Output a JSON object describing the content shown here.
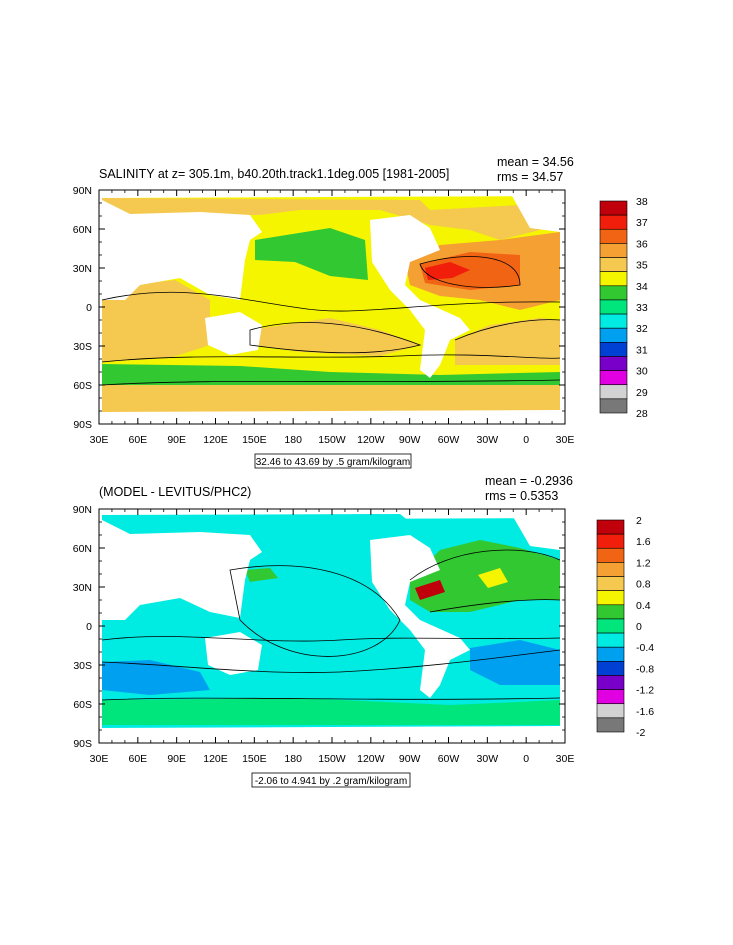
{
  "panels": [
    {
      "title": "SALINITY at z= 305.1m, b40.20th.track1.1deg.005 [1981-2005]",
      "mean_label": "mean = 34.56",
      "rms_label": "rms = 34.57",
      "range_label": "32.46 to 43.69 by .5 gram/kilogram",
      "colorbar_labels": [
        "38",
        "37",
        "36",
        "35",
        "34",
        "33",
        "32",
        "31",
        "30",
        "29",
        "28"
      ],
      "colorbar_colors": [
        "#c0000a",
        "#f01e0a",
        "#f06414",
        "#f5a032",
        "#f5c850",
        "#f5f500",
        "#32c832",
        "#00e67d",
        "#00ebe1",
        "#00a0f0",
        "#0040d2",
        "#7800c8",
        "#e100e1",
        "#d2d2d2",
        "#787878"
      ],
      "x_ticks": [
        "30E",
        "60E",
        "90E",
        "120E",
        "150E",
        "180",
        "150W",
        "120W",
        "90W",
        "60W",
        "30W",
        "0",
        "30E"
      ],
      "y_ticks": [
        "90N",
        "60N",
        "30N",
        "0",
        "30S",
        "60S",
        "90S"
      ]
    },
    {
      "title": "(MODEL - LEVITUS/PHC2)",
      "mean_label": "mean = -0.2936",
      "rms_label": "rms = 0.5353",
      "range_label": "-2.06 to 4.941 by .2 gram/kilogram",
      "colorbar_labels": [
        "2",
        "1.6",
        "1.2",
        "0.8",
        "0.4",
        "0",
        "-0.4",
        "-0.8",
        "-1.2",
        "-1.6",
        "-2"
      ],
      "colorbar_colors": [
        "#c0000a",
        "#f01e0a",
        "#f06414",
        "#f5a032",
        "#f5c850",
        "#f5f500",
        "#32c832",
        "#00e67d",
        "#00ebe1",
        "#00a0f0",
        "#0040d2",
        "#7800c8",
        "#e100e1",
        "#d2d2d2",
        "#787878"
      ],
      "x_ticks": [
        "30E",
        "60E",
        "90E",
        "120E",
        "150E",
        "180",
        "150W",
        "120W",
        "90W",
        "60W",
        "30W",
        "0",
        "30E"
      ],
      "y_ticks": [
        "90N",
        "60N",
        "30N",
        "0",
        "30S",
        "60S",
        "90S"
      ]
    }
  ],
  "chart_data": [
    {
      "type": "heatmap",
      "title": "SALINITY at z= 305.1m, b40.20th.track1.1deg.005 [1981-2005]",
      "mean": 34.56,
      "rms": 34.57,
      "contour_info": "32.46 to 43.69 by .5 gram/kilogram",
      "x_range": [
        "30E",
        "30E"
      ],
      "y_range": [
        "90S",
        "90N"
      ],
      "colorbar_min": 28,
      "colorbar_max": 38,
      "colorbar_levels": [
        "38",
        "37",
        "36",
        "35",
        "34",
        "33",
        "32",
        "31",
        "30",
        "29",
        "28"
      ]
    },
    {
      "type": "heatmap",
      "title": "(MODEL - LEVITUS/PHC2)",
      "mean": -0.2936,
      "rms": 0.5353,
      "contour_info": "-2.06 to 4.941 by .2 gram/kilogram",
      "x_range": [
        "30E",
        "30E"
      ],
      "y_range": [
        "90S",
        "90N"
      ],
      "colorbar_min": -2,
      "colorbar_max": 2,
      "colorbar_levels": [
        "2",
        "1.6",
        "1.2",
        "0.8",
        "0.4",
        "0",
        "-0.4",
        "-0.8",
        "-1.2",
        "-1.6",
        "-2"
      ]
    }
  ]
}
